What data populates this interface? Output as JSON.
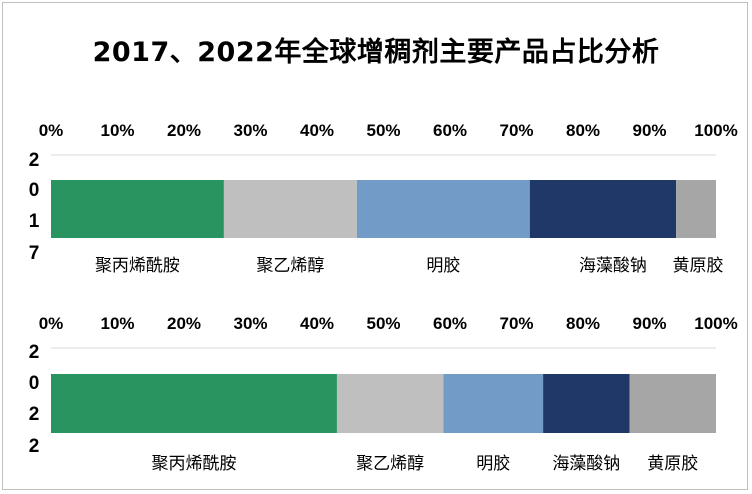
{
  "title": "2017、2022年全球增稠剂主要产品占比分析",
  "chart_data": [
    {
      "type": "bar",
      "orientation": "horizontal-stacked-percent",
      "category_label": [
        "2",
        "0",
        "1",
        "7"
      ],
      "x_ticks": [
        "0%",
        "10%",
        "20%",
        "30%",
        "40%",
        "50%",
        "60%",
        "70%",
        "80%",
        "90%",
        "100%"
      ],
      "xlim": [
        0,
        100
      ],
      "series": [
        {
          "name": "聚丙烯酰胺",
          "value": 26,
          "color": "#2a9461"
        },
        {
          "name": "聚乙烯醇",
          "value": 20,
          "color": "#bfbfbf"
        },
        {
          "name": "明胶",
          "value": 26,
          "color": "#729bc7"
        },
        {
          "name": "海藻酸钠",
          "value": 22,
          "color": "#1f3868"
        },
        {
          "name": "黄原胶",
          "value": 6,
          "color": "#a6a6a6"
        }
      ]
    },
    {
      "type": "bar",
      "orientation": "horizontal-stacked-percent",
      "category_label": [
        "2",
        "0",
        "2",
        "2"
      ],
      "x_ticks": [
        "0%",
        "10%",
        "20%",
        "30%",
        "40%",
        "50%",
        "60%",
        "70%",
        "80%",
        "90%",
        "100%"
      ],
      "xlim": [
        0,
        100
      ],
      "series": [
        {
          "name": "聚丙烯酰胺",
          "value": 43,
          "color": "#2a9461"
        },
        {
          "name": "聚乙烯醇",
          "value": 16,
          "color": "#bfbfbf"
        },
        {
          "name": "明胶",
          "value": 15,
          "color": "#729bc7"
        },
        {
          "name": "海藻酸钠",
          "value": 13,
          "color": "#1f3868"
        },
        {
          "name": "黄原胶",
          "value": 13,
          "color": "#a6a6a6"
        }
      ]
    }
  ]
}
